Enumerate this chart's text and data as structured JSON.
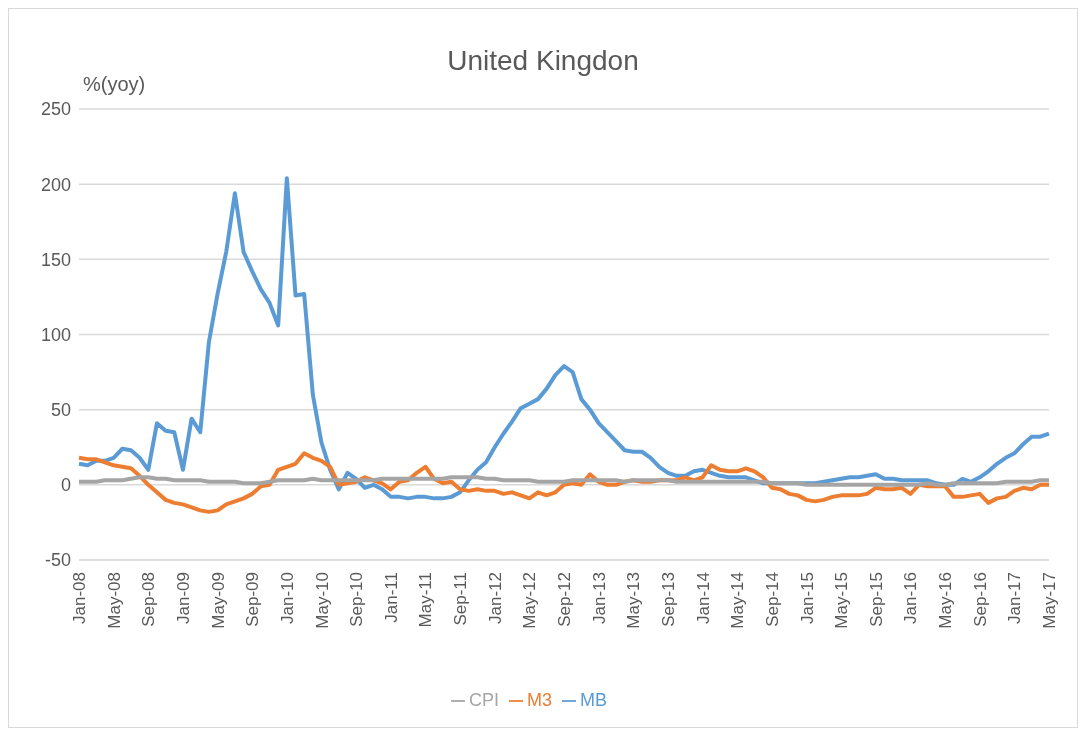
{
  "chart_data": {
    "type": "line",
    "title": "United Kingdon",
    "ylabel": "%(yoy)",
    "categories": [
      "Jan-08",
      null,
      null,
      null,
      "May-08",
      null,
      null,
      null,
      "Sep-08",
      null,
      null,
      null,
      "Jan-09",
      null,
      null,
      null,
      "May-09",
      null,
      null,
      null,
      "Sep-09",
      null,
      null,
      null,
      "Jan-10",
      null,
      null,
      null,
      "May-10",
      null,
      null,
      null,
      "Sep-10",
      null,
      null,
      null,
      "Jan-11",
      null,
      null,
      null,
      "May-11",
      null,
      null,
      null,
      "Sep-11",
      null,
      null,
      null,
      "Jan-12",
      null,
      null,
      null,
      "May-12",
      null,
      null,
      null,
      "Sep-12",
      null,
      null,
      null,
      "Jan-13",
      null,
      null,
      null,
      "May-13",
      null,
      null,
      null,
      "Sep-13",
      null,
      null,
      null,
      "Jan-14",
      null,
      null,
      null,
      "May-14",
      null,
      null,
      null,
      "Sep-14",
      null,
      null,
      null,
      "Jan-15",
      null,
      null,
      null,
      "May-15",
      null,
      null,
      null,
      "Sep-15",
      null,
      null,
      null,
      "Jan-16",
      null,
      null,
      null,
      "May-16",
      null,
      null,
      null,
      "Sep-16",
      null,
      null,
      null,
      "Jan-17",
      null,
      null,
      null,
      "May-17"
    ],
    "series": [
      {
        "name": "MB",
        "color": "#5b9bd5",
        "values": [
          14,
          13,
          16,
          16,
          18,
          24,
          23,
          18,
          10,
          41,
          36,
          35,
          10,
          44,
          35,
          95,
          127,
          155,
          194,
          155,
          142,
          130,
          121,
          106,
          204,
          126,
          127,
          60,
          28,
          10,
          -3,
          8,
          4,
          -2,
          0,
          -3,
          -8,
          -8,
          -9,
          -8,
          -8,
          -9,
          -9,
          -8,
          -5,
          3,
          10,
          15,
          25,
          34,
          42,
          51,
          54,
          57,
          64,
          73,
          79,
          75,
          57,
          50,
          41,
          35,
          29,
          23,
          22,
          22,
          18,
          12,
          8,
          6,
          6,
          9,
          10,
          8,
          6,
          5,
          5,
          5,
          3,
          1,
          1,
          1,
          1,
          1,
          1,
          1,
          2,
          3,
          4,
          5,
          5,
          6,
          7,
          4,
          4,
          3,
          3,
          3,
          3,
          1,
          0,
          0,
          4,
          2,
          5,
          9,
          14,
          18,
          21,
          27,
          32,
          32,
          34
        ]
      },
      {
        "name": "M3",
        "color": "#ed7d31",
        "values": [
          18,
          17,
          17,
          15,
          13,
          12,
          11,
          6,
          0,
          -5,
          -10,
          -12,
          -13,
          -15,
          -17,
          -18,
          -17,
          -13,
          -11,
          -9,
          -6,
          -1,
          0,
          10,
          12,
          14,
          21,
          18,
          16,
          12,
          0,
          1,
          2,
          5,
          3,
          1,
          -3,
          2,
          3,
          8,
          12,
          4,
          1,
          2,
          -3,
          -4,
          -3,
          -4,
          -4,
          -6,
          -5,
          -7,
          -9,
          -5,
          -7,
          -5,
          0,
          1,
          0,
          7,
          2,
          0,
          0,
          2,
          3,
          2,
          2,
          3,
          3,
          3,
          5,
          3,
          5,
          13,
          10,
          9,
          9,
          11,
          9,
          5,
          -2,
          -3,
          -6,
          -7,
          -10,
          -11,
          -10,
          -8,
          -7,
          -7,
          -7,
          -6,
          -2,
          -3,
          -3,
          -2,
          -6,
          0,
          -1,
          -1,
          -1,
          -8,
          -8,
          -7,
          -6,
          -12,
          -9,
          -8,
          -4,
          -2,
          -3,
          0,
          0
        ]
      },
      {
        "name": "CPI",
        "color": "#a5a5a5",
        "values": [
          2,
          2,
          2,
          3,
          3,
          3,
          4,
          5,
          5,
          4,
          4,
          3,
          3,
          3,
          3,
          2,
          2,
          2,
          2,
          1,
          1,
          1,
          2,
          3,
          3,
          3,
          3,
          4,
          3,
          3,
          3,
          3,
          3,
          3,
          3,
          4,
          4,
          4,
          4,
          4,
          4,
          4,
          4,
          5,
          5,
          5,
          5,
          4,
          4,
          3,
          3,
          3,
          3,
          2,
          2,
          2,
          2,
          3,
          3,
          3,
          3,
          3,
          3,
          2,
          3,
          3,
          3,
          3,
          3,
          2,
          2,
          2,
          2,
          2,
          2,
          2,
          2,
          2,
          2,
          2,
          1,
          1,
          1,
          1,
          0,
          0,
          0,
          0,
          0,
          0,
          0,
          0,
          0,
          0,
          0,
          0,
          0,
          0,
          1,
          0,
          0,
          1,
          1,
          1,
          1,
          1,
          1,
          2,
          2,
          2,
          2,
          3,
          3
        ]
      }
    ],
    "ylim": [
      -50,
      250
    ],
    "yticks": [
      -50,
      0,
      50,
      100,
      150,
      200,
      250
    ],
    "grid": "y",
    "legend": "bottom",
    "marker": "none",
    "line_style": "solid"
  }
}
